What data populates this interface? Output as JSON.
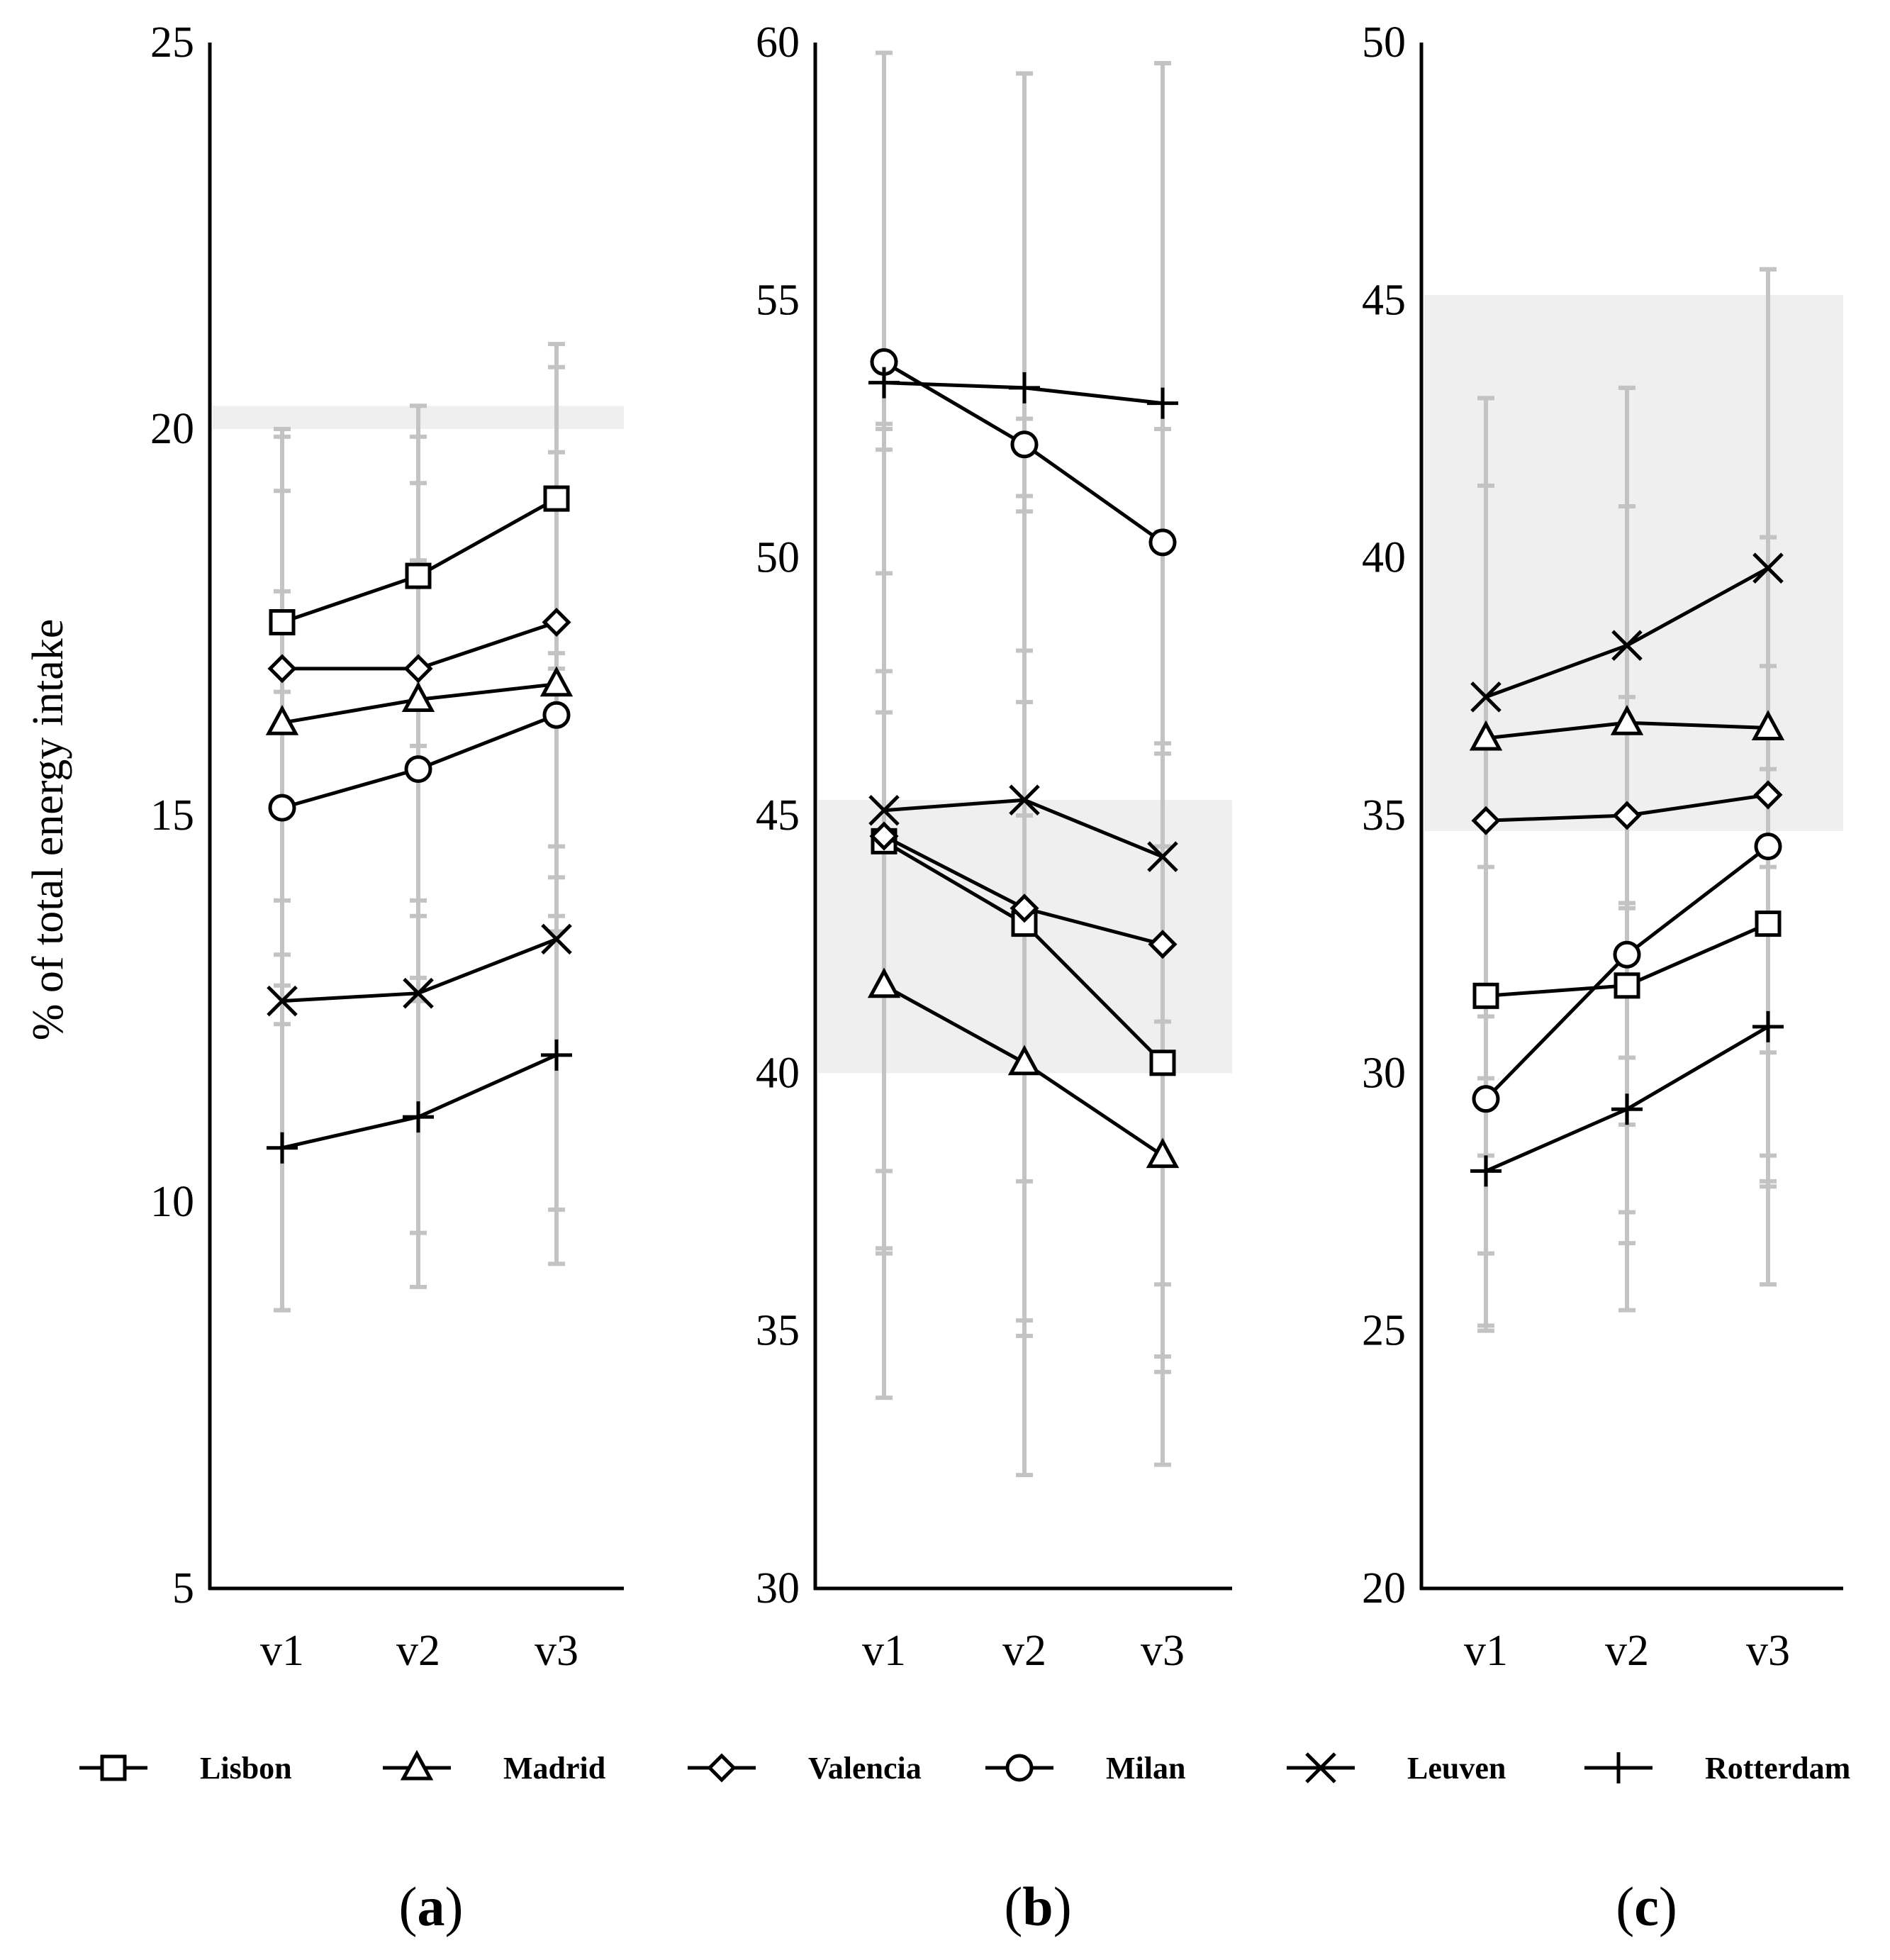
{
  "chart_data": [
    {
      "type": "line",
      "panel_label": "a",
      "title": "",
      "ylabel": "% of total energy intake",
      "xlabel": "",
      "x": [
        "v1",
        "v2",
        "v3"
      ],
      "ylim": [
        5,
        25
      ],
      "yticks": [
        5,
        10,
        15,
        20,
        25
      ],
      "grid": false,
      "reference_band": [
        20.0,
        20.3
      ],
      "series": [
        {
          "name": "Lisbon",
          "marker": "square",
          "values": [
            17.5,
            18.1,
            19.1
          ],
          "err": [
            2.5,
            2.2,
            2.0
          ]
        },
        {
          "name": "Madrid",
          "marker": "triangle",
          "values": [
            16.2,
            16.5,
            16.7
          ],
          "err": [
            3.0,
            2.8,
            3.0
          ]
        },
        {
          "name": "Valencia",
          "marker": "diamond",
          "values": [
            16.9,
            16.9,
            17.5
          ],
          "err": [
            3.0,
            3.0,
            3.3
          ]
        },
        {
          "name": "Milan",
          "marker": "circle",
          "values": [
            15.1,
            15.6,
            16.3
          ],
          "err": [
            2.8,
            2.7,
            2.8
          ]
        },
        {
          "name": "Leuven",
          "marker": "x",
          "values": [
            12.6,
            12.7,
            13.4
          ],
          "err": [
            4.0,
            3.8,
            3.5
          ]
        },
        {
          "name": "Rotterdam",
          "marker": "plus",
          "values": [
            10.7,
            11.1,
            11.9
          ],
          "err": [
            2.1,
            1.5,
            2.7
          ]
        }
      ]
    },
    {
      "type": "line",
      "panel_label": "b",
      "title": "",
      "ylabel": "",
      "xlabel": "",
      "x": [
        "v1",
        "v2",
        "v3"
      ],
      "ylim": [
        30,
        60
      ],
      "yticks": [
        30,
        35,
        40,
        45,
        50,
        55,
        60
      ],
      "grid": false,
      "reference_band": [
        40.0,
        45.3
      ],
      "series": [
        {
          "name": "Lisbon",
          "marker": "square",
          "values": [
            44.5,
            42.9,
            40.2
          ],
          "err": [
            8.0,
            8.0,
            6.0
          ]
        },
        {
          "name": "Madrid",
          "marker": "triangle",
          "values": [
            41.7,
            40.2,
            38.4
          ],
          "err": [
            8.0,
            8.0,
            6.0
          ]
        },
        {
          "name": "Valencia",
          "marker": "diamond",
          "values": [
            44.6,
            43.2,
            42.5
          ],
          "err": [
            8.0,
            8.0,
            8.0
          ]
        },
        {
          "name": "Milan",
          "marker": "circle",
          "values": [
            53.8,
            52.2,
            50.3
          ],
          "err": [
            6.0,
            7.2,
            9.3
          ]
        },
        {
          "name": "Leuven",
          "marker": "x",
          "values": [
            45.1,
            45.3,
            44.2
          ],
          "err": [
            7.0,
            7.4,
            8.3
          ]
        },
        {
          "name": "Rotterdam",
          "marker": "plus",
          "values": [
            53.4,
            53.3,
            53.0
          ],
          "err": [
            6.4,
            6.1,
            6.6
          ]
        }
      ]
    },
    {
      "type": "line",
      "panel_label": "c",
      "title": "",
      "ylabel": "",
      "xlabel": "",
      "x": [
        "v1",
        "v2",
        "v3"
      ],
      "ylim": [
        20,
        50
      ],
      "yticks": [
        20,
        25,
        30,
        35,
        40,
        45,
        50
      ],
      "grid": false,
      "reference_band": [
        34.7,
        45.1
      ],
      "series": [
        {
          "name": "Lisbon",
          "marker": "square",
          "values": [
            31.5,
            31.7,
            32.9
          ],
          "err": [
            5.0,
            5.0,
            5.0
          ]
        },
        {
          "name": "Madrid",
          "marker": "triangle",
          "values": [
            36.5,
            36.8,
            36.7
          ],
          "err": [
            6.6,
            6.5,
            8.9
          ]
        },
        {
          "name": "Valencia",
          "marker": "diamond",
          "values": [
            34.9,
            35.0,
            35.4
          ],
          "err": [
            6.5,
            6.0,
            5.0
          ]
        },
        {
          "name": "Milan",
          "marker": "circle",
          "values": [
            29.5,
            32.3,
            34.4
          ],
          "err": [
            4.5,
            5.0,
            6.0
          ]
        },
        {
          "name": "Leuven",
          "marker": "x",
          "values": [
            37.3,
            38.3,
            39.8
          ],
          "err": [
            5.8,
            5.0,
            5.8
          ]
        },
        {
          "name": "Rotterdam",
          "marker": "plus",
          "values": [
            28.1,
            29.3,
            30.9
          ],
          "err": [
            3.0,
            3.9,
            5.0
          ]
        }
      ]
    }
  ],
  "legend": {
    "placement": "bottom",
    "items": [
      {
        "name": "Lisbon",
        "marker": "square"
      },
      {
        "name": "Madrid",
        "marker": "triangle"
      },
      {
        "name": "Valencia",
        "marker": "diamond"
      },
      {
        "name": "Milan",
        "marker": "circle"
      },
      {
        "name": "Leuven",
        "marker": "x"
      },
      {
        "name": "Rotterdam",
        "marker": "plus"
      }
    ]
  },
  "colors": {
    "line": "#000000",
    "marker_fill": "#ffffff",
    "error_bar": "#c3c3c3",
    "reference_band": "#efefef"
  }
}
